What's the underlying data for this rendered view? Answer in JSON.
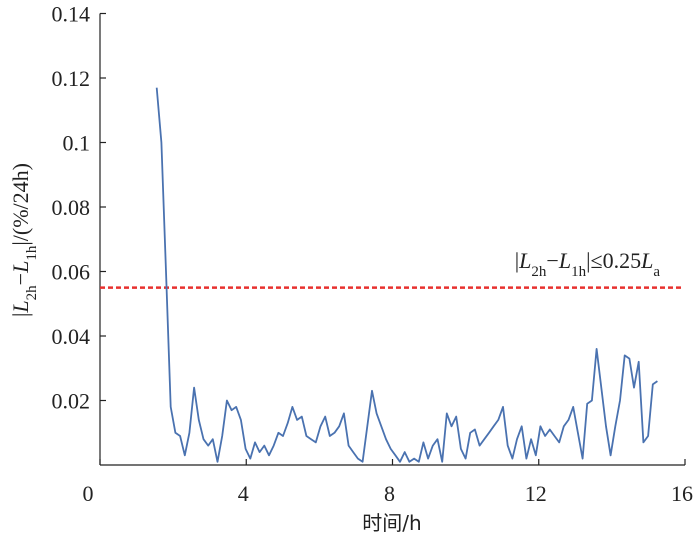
{
  "chart_data": {
    "type": "line",
    "xlabel": "时间/h",
    "ylabel": [
      {
        "text": "|"
      },
      {
        "text": "L",
        "italic": true
      },
      {
        "text": "2h",
        "sub": true
      },
      {
        "text": "−"
      },
      {
        "text": "L",
        "italic": true
      },
      {
        "text": "1h",
        "sub": true
      },
      {
        "text": "|/(%/24h)"
      }
    ],
    "annotation": [
      {
        "text": "|"
      },
      {
        "text": "L",
        "italic": true
      },
      {
        "text": "2h",
        "sub": true
      },
      {
        "text": "−"
      },
      {
        "text": "L",
        "italic": true
      },
      {
        "text": "1h",
        "sub": true
      },
      {
        "text": "|≤0.25"
      },
      {
        "text": "L",
        "italic": true
      },
      {
        "text": "a",
        "sub": true
      }
    ],
    "threshold": {
      "value": 0.055,
      "color": "#e8312f"
    },
    "xlim": [
      0,
      16
    ],
    "xticks": [
      0,
      4,
      8,
      12,
      16
    ],
    "ylim": [
      0,
      0.14
    ],
    "yticks": [
      0.02,
      0.04,
      0.06,
      0.08,
      0.1,
      0.12,
      0.14
    ],
    "series": [
      {
        "color": "#4a72b0",
        "x": [
          1.55,
          1.678,
          1.806,
          1.934,
          2.062,
          2.19,
          2.318,
          2.446,
          2.574,
          2.702,
          2.83,
          2.958,
          3.086,
          3.214,
          3.342,
          3.47,
          3.598,
          3.726,
          3.854,
          3.982,
          4.11,
          4.238,
          4.366,
          4.494,
          4.622,
          4.75,
          4.878,
          5.006,
          5.134,
          5.262,
          5.39,
          5.518,
          5.646,
          5.774,
          5.902,
          6.03,
          6.158,
          6.286,
          6.414,
          6.542,
          6.67,
          6.798,
          6.926,
          7.054,
          7.182,
          7.31,
          7.438,
          7.566,
          7.694,
          7.822,
          7.95,
          8.078,
          8.206,
          8.334,
          8.462,
          8.59,
          8.718,
          8.846,
          8.974,
          9.102,
          9.23,
          9.358,
          9.486,
          9.614,
          9.742,
          9.87,
          9.998,
          10.126,
          10.254,
          10.382,
          10.51,
          10.638,
          10.766,
          10.894,
          11.022,
          11.15,
          11.278,
          11.406,
          11.534,
          11.662,
          11.79,
          11.918,
          12.046,
          12.174,
          12.302,
          12.43,
          12.558,
          12.686,
          12.814,
          12.942,
          13.07,
          13.198,
          13.326,
          13.454,
          13.582,
          13.71,
          13.838,
          13.966,
          14.094,
          14.222,
          14.35,
          14.478,
          14.606,
          14.734,
          14.862,
          14.99,
          15.118,
          15.246
        ],
        "values": [
          0.117,
          0.1,
          0.06,
          0.018,
          0.01,
          0.009,
          0.003,
          0.01,
          0.024,
          0.014,
          0.008,
          0.006,
          0.008,
          0.001,
          0.009,
          0.02,
          0.017,
          0.018,
          0.014,
          0.005,
          0.002,
          0.007,
          0.004,
          0.006,
          0.003,
          0.006,
          0.01,
          0.009,
          0.013,
          0.018,
          0.014,
          0.015,
          0.009,
          0.008,
          0.007,
          0.012,
          0.015,
          0.009,
          0.01,
          0.012,
          0.016,
          0.006,
          0.004,
          0.002,
          0.001,
          0.012,
          0.023,
          0.016,
          0.012,
          0.008,
          0.005,
          0.003,
          0.001,
          0.004,
          0.001,
          0.002,
          0.001,
          0.007,
          0.002,
          0.006,
          0.008,
          0.001,
          0.016,
          0.012,
          0.015,
          0.005,
          0.002,
          0.01,
          0.011,
          0.006,
          0.008,
          0.01,
          0.012,
          0.014,
          0.018,
          0.006,
          0.002,
          0.008,
          0.012,
          0.002,
          0.008,
          0.003,
          0.012,
          0.009,
          0.011,
          0.009,
          0.007,
          0.012,
          0.014,
          0.018,
          0.01,
          0.002,
          0.019,
          0.02,
          0.036,
          0.024,
          0.012,
          0.003,
          0.012,
          0.02,
          0.034,
          0.033,
          0.024,
          0.032,
          0.007,
          0.009,
          0.025,
          0.026
        ]
      }
    ]
  }
}
